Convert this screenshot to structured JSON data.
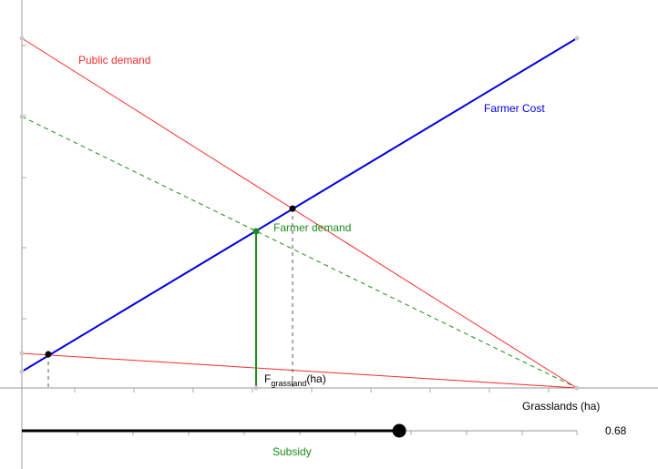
{
  "labels": {
    "public_demand": "Public demand",
    "farmer_cost": "Farmer Cost",
    "farmer_demand": "Farmer demand",
    "x_axis": "Grasslands (ha)",
    "f_main": "F",
    "f_sub": "grassland",
    "f_unit": "(ha)"
  },
  "slider": {
    "label": "Subsidy",
    "value": "0.68",
    "level": 0.68
  },
  "colors": {
    "public_demand": "#ff2a2a",
    "farmer_cost": "#0000e0",
    "farmer_demand": "#1a8c1a",
    "axis": "#999999",
    "point": "#000000"
  }
}
